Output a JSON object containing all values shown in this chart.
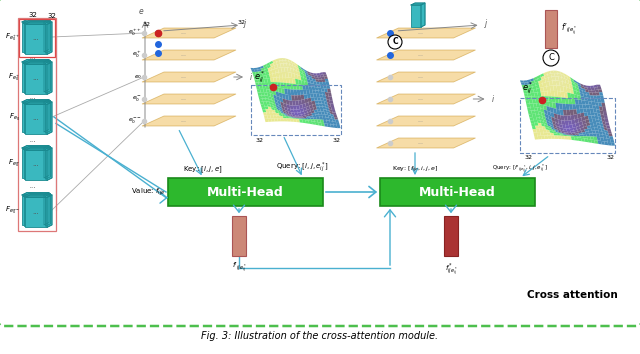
{
  "title": "Fig. 3: Illustration of the cross-attention module.",
  "cross_attention_label": "Cross attention",
  "bg_color": "#ffffff",
  "border_color": "#4dbf4d",
  "multi_head_color": "#2db82d",
  "multi_head_edge": "#1a8a1a",
  "multi_head_text": "Multi-Head",
  "value_label": "Value: $f_{ije}$",
  "key1_label": "Key: $[i,j,e]$",
  "query1_label": "Query: $[i,j,e^*_{ij}]$",
  "key2_label": "Key: $[f_{ije},i,j,e]$",
  "query2_label": "Query: $[f'_{ije^*_{ij}},i,j,e^*_{ij}]$",
  "output1_label": "$f'_{ije^*_{ij}}$",
  "output2_label": "$f^*_{ije^*_{ij}}$",
  "teal_color": "#3ab8bf",
  "teal_edge": "#1a8a90",
  "plate_color": "#f0c060",
  "plate_edge": "#c8952a",
  "plate_alpha": 0.55,
  "salmon_color": "#cc8877",
  "salmon_edge": "#aa5555",
  "dark_red_color": "#aa3333",
  "dark_red_edge": "#882222",
  "arrow_color": "#4ab0d0",
  "gray_line": "#aaaaaa",
  "dot_blue": "#2266dd",
  "dot_red": "#cc2222"
}
